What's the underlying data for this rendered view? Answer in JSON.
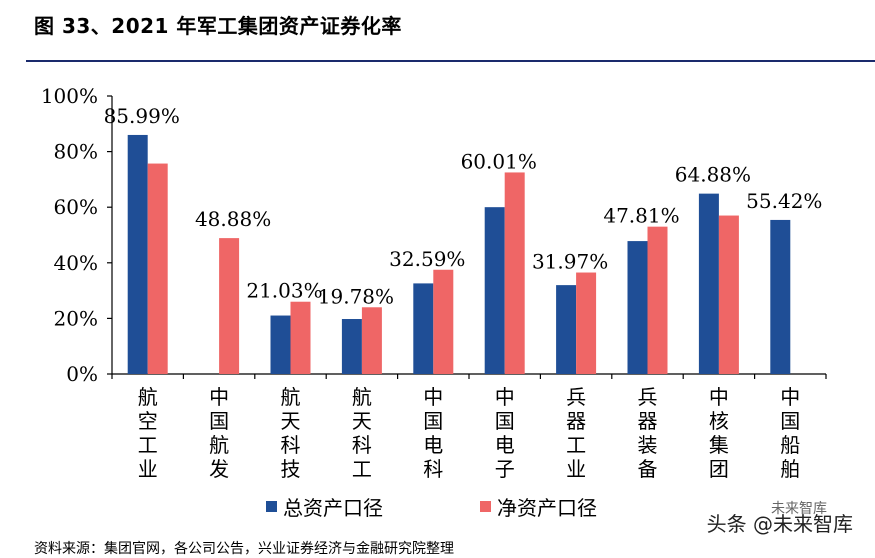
{
  "header": {
    "title": "图 33、2021 年军工集团资产证券化率"
  },
  "chart_data": {
    "type": "bar",
    "title": "图 33、2021 年军工集团资产证券化率",
    "categories": [
      "航空工业",
      "中国航发",
      "航天科技",
      "航天科工",
      "中国电科",
      "中国电子",
      "兵器工业",
      "兵器装备",
      "中核集团",
      "中国船舶"
    ],
    "series": [
      {
        "name": "总资产口径",
        "color": "#1f4e96",
        "values": [
          85.99,
          null,
          21.03,
          19.78,
          32.59,
          60.01,
          31.97,
          47.81,
          64.88,
          55.42
        ]
      },
      {
        "name": "净资产口径",
        "color": "#ef6666",
        "values": [
          75.7,
          48.88,
          26.0,
          24.0,
          37.5,
          72.5,
          36.5,
          53.0,
          57.0,
          null
        ]
      }
    ],
    "data_labels": [
      "85.99%",
      "48.88%",
      "21.03%",
      "19.78%",
      "32.59%",
      "60.01%",
      "31.97%",
      "47.81%",
      "64.88%",
      "55.42%"
    ],
    "yticks": [
      "0%",
      "20%",
      "40%",
      "60%",
      "80%",
      "100%"
    ],
    "ylim": [
      0,
      100
    ],
    "xlabel": "",
    "ylabel": "",
    "grid": false,
    "legend_position": "bottom"
  },
  "legend": {
    "items": [
      "总资产口径",
      "净资产口径"
    ]
  },
  "footer": {
    "source": "资料来源：集团官网，各公司公告，兴业证券经济与金融研究院整理",
    "watermark": "头条 @未来智库",
    "watermark_small": "未来智库"
  }
}
